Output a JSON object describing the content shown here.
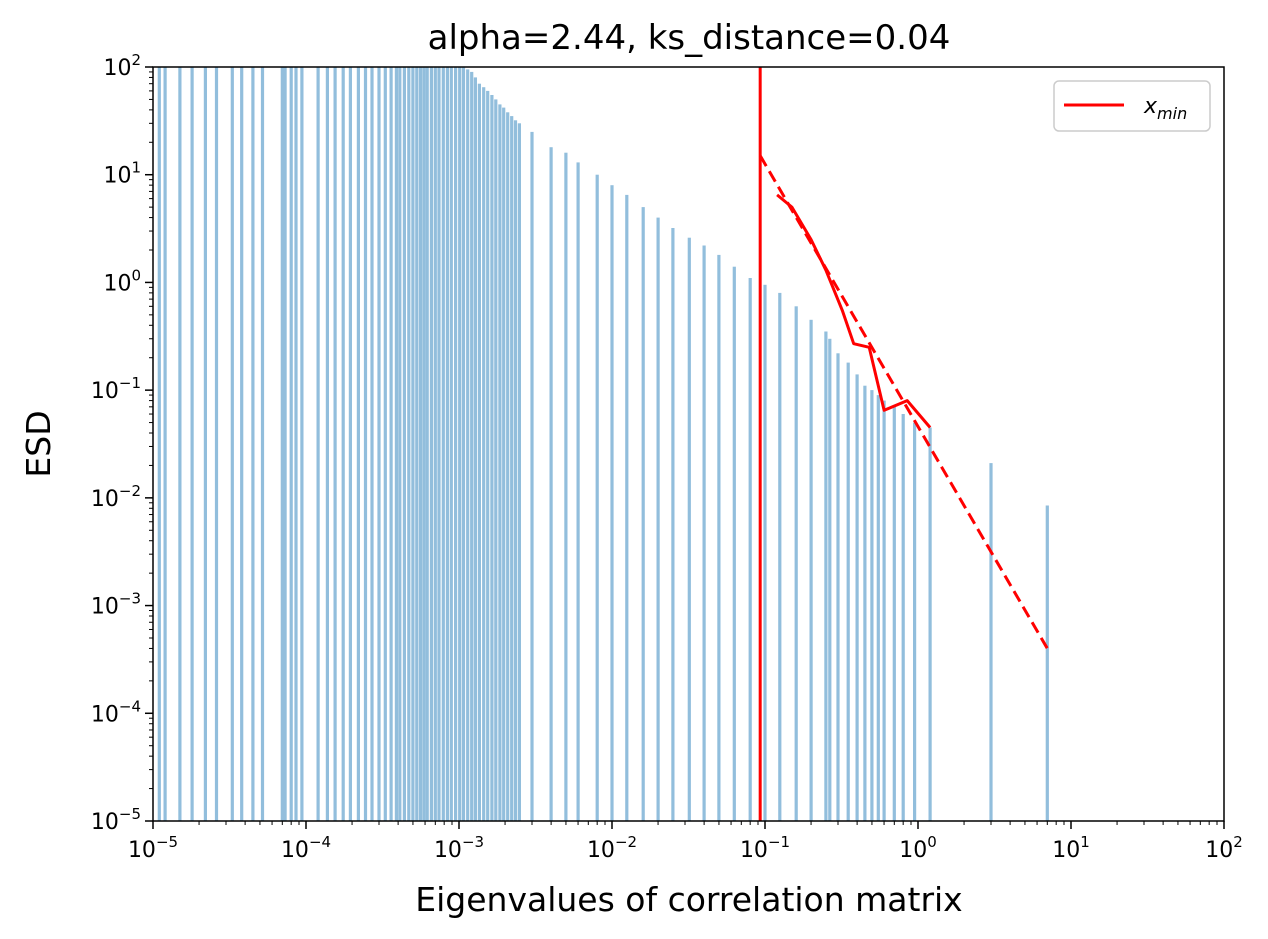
{
  "chart_data": {
    "type": "bar",
    "title": "alpha=2.44, ks_distance=0.04",
    "xlabel": "Eigenvalues of correlation matrix",
    "ylabel": "ESD",
    "xscale": "log",
    "yscale": "log",
    "xlim": [
      1e-05,
      100
    ],
    "ylim": [
      1e-05,
      100
    ],
    "xtick_labels": [
      "10^-5",
      "10^-4",
      "10^-3",
      "10^-2",
      "10^-1",
      "10^0",
      "10^1",
      "10^2"
    ],
    "ytick_labels": [
      "10^-5",
      "10^-4",
      "10^-3",
      "10^-2",
      "10^-1",
      "10^0",
      "10^1",
      "10^2"
    ],
    "grid": false,
    "legend": {
      "position": "top-right",
      "entries": [
        "x_min"
      ]
    },
    "colors": {
      "histogram": "#92bedc",
      "fit": "#ff0000",
      "axes": "#000000"
    },
    "series": [
      {
        "type": "histogram",
        "x": [
          1.1e-05,
          1.2e-05,
          1.5e-05,
          1.8e-05,
          2.2e-05,
          2.6e-05,
          3.3e-05,
          3.8e-05,
          4.5e-05,
          5.2e-05,
          7e-05,
          7.3e-05,
          8e-05,
          8.6e-05,
          9.4e-05,
          0.00012,
          0.000138,
          0.000155,
          0.000175,
          0.000195,
          0.00022,
          0.000245,
          0.00027,
          0.0003,
          0.00033,
          0.00036,
          0.00039,
          0.00041,
          0.00044,
          0.00047,
          0.0005,
          0.00053,
          0.00056,
          0.00059,
          0.00062,
          0.00066,
          0.0007,
          0.00074,
          0.00079,
          0.00084,
          0.00089,
          0.00095,
          0.00101,
          0.00107,
          0.00114,
          0.00121,
          0.00128,
          0.00136,
          0.00145,
          0.00154,
          0.00164,
          0.00174,
          0.00185,
          0.00196,
          0.00208,
          0.00221,
          0.00234,
          0.00248,
          0.003,
          0.004,
          0.005,
          0.006,
          0.008,
          0.01,
          0.0125,
          0.016,
          0.02,
          0.025,
          0.032,
          0.04,
          0.05,
          0.063,
          0.08,
          0.1,
          0.125,
          0.16,
          0.2,
          0.25,
          0.265,
          0.3,
          0.35,
          0.4,
          0.45,
          0.5,
          0.55,
          0.6,
          0.7,
          0.8,
          0.95,
          1.2,
          3.0,
          7.0
        ],
        "values": [
          100,
          100,
          100,
          100,
          100,
          100,
          100,
          100,
          100,
          100,
          100,
          100,
          100,
          100,
          100,
          100,
          100,
          100,
          100,
          100,
          100,
          100,
          100,
          100,
          100,
          100,
          100,
          100,
          100,
          100,
          100,
          100,
          100,
          100,
          100,
          100,
          100,
          100,
          100,
          100,
          100,
          100,
          100,
          100,
          95,
          90,
          80,
          70,
          65,
          60,
          55,
          50,
          45,
          42,
          38,
          35,
          32,
          30,
          25,
          18,
          16,
          13,
          10,
          8,
          6.5,
          5,
          4,
          3.2,
          2.6,
          2.2,
          1.8,
          1.4,
          1.1,
          0.95,
          0.8,
          0.6,
          0.45,
          0.35,
          0.3,
          0.22,
          0.18,
          0.14,
          0.11,
          0.1,
          0.09,
          0.08,
          0.07,
          0.06,
          0.05,
          0.045,
          0.021,
          0.0085
        ]
      },
      {
        "name": "x_min",
        "type": "vline",
        "x": 0.093
      },
      {
        "type": "line",
        "x": [
          0.093,
          7.0
        ],
        "values": [
          15,
          0.0004
        ]
      },
      {
        "type": "line",
        "x": [
          0.12,
          0.15,
          0.2,
          0.25,
          0.32,
          0.38,
          0.48,
          0.6,
          0.85,
          1.2
        ],
        "values": [
          6.5,
          5.0,
          2.5,
          1.3,
          0.55,
          0.27,
          0.25,
          0.065,
          0.08,
          0.045
        ]
      }
    ]
  }
}
